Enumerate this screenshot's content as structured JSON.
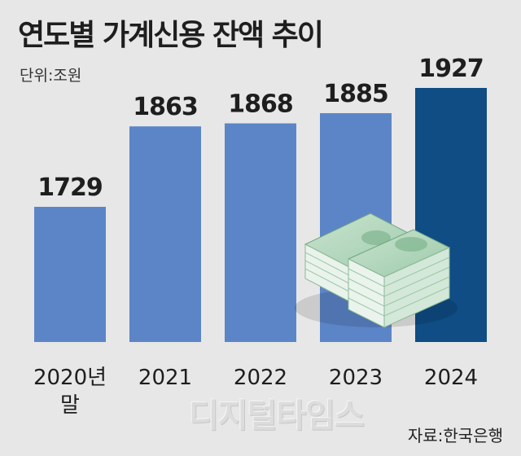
{
  "header": {
    "title": "연도별 가계신용 잔액 추이",
    "unit": "단위:조원"
  },
  "chart_data": {
    "type": "bar",
    "categories": [
      [
        "2020년",
        "말"
      ],
      [
        "2021"
      ],
      [
        "2022"
      ],
      [
        "2023"
      ],
      [
        "2024"
      ]
    ],
    "values": [
      1729,
      1863,
      1868,
      1885,
      1927
    ],
    "bar_color": "#5c85c8",
    "highlight_color": "#0f4d84",
    "highlight_index": 4,
    "title": "연도별 가계신용 잔액 추이",
    "ylabel": "단위:조원",
    "grid": false,
    "legend": "none"
  },
  "decorations": {
    "money_icon": "banknote-stacks-icon"
  },
  "footer": {
    "source": "자료:한국은행",
    "watermark": "디지털타임스"
  }
}
